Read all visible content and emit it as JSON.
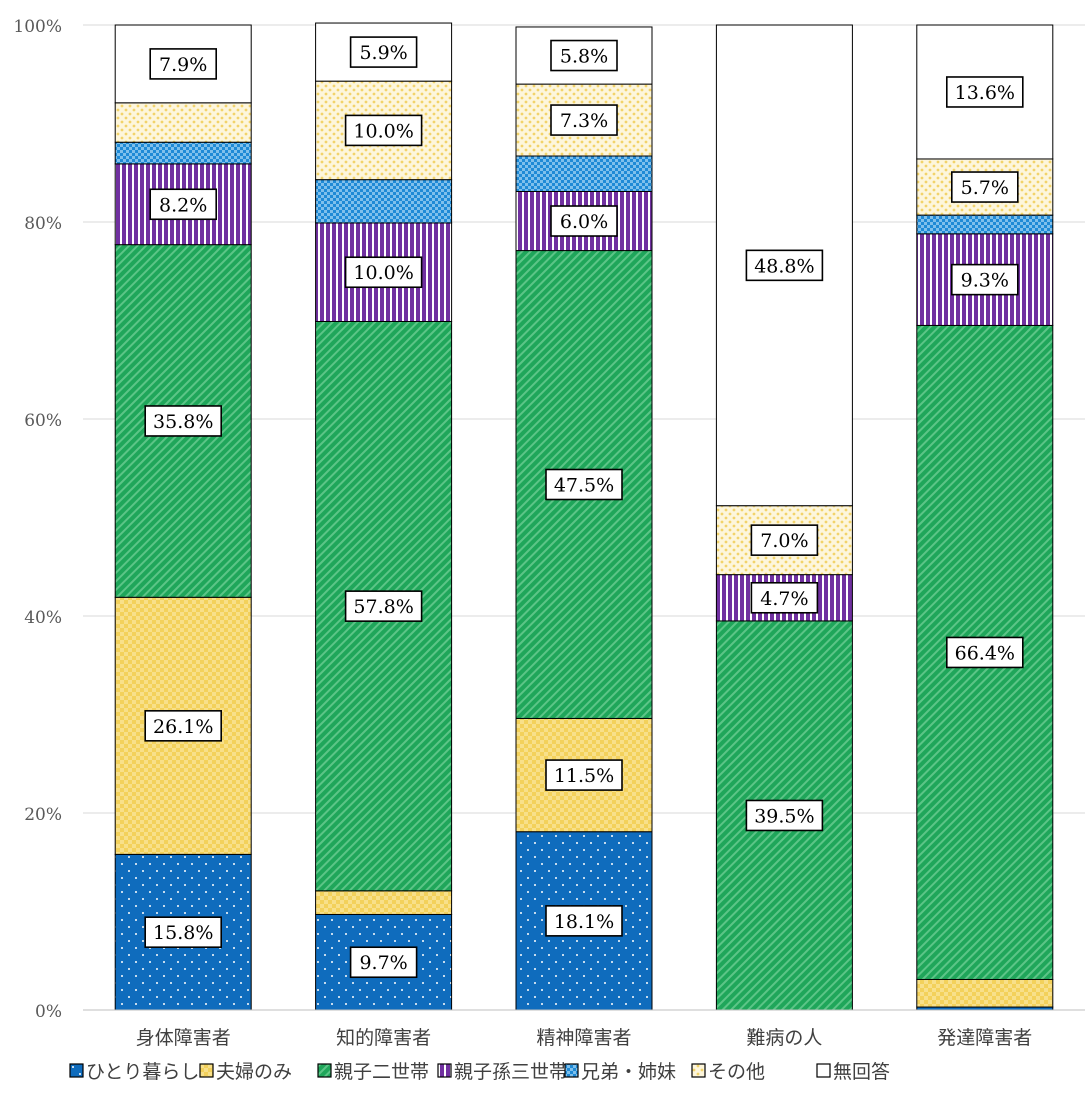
{
  "chart_data": {
    "type": "bar",
    "stacked": true,
    "percent_stacked": true,
    "categories": [
      "身体障害者",
      "知的障害者",
      "精神障害者",
      "難病の人",
      "発達障害者"
    ],
    "series": [
      {
        "name": "ひとり暮らし",
        "values": [
          15.8,
          9.7,
          18.1,
          0.0,
          0.3
        ],
        "labels": [
          "15.8%",
          "9.7%",
          "18.1%",
          "",
          ""
        ],
        "color": "#0f6cbd",
        "pattern": "dots-white"
      },
      {
        "name": "夫婦のみ",
        "values": [
          26.1,
          2.4,
          11.5,
          0.0,
          2.8
        ],
        "labels": [
          "26.1%",
          "",
          "11.5%",
          "",
          ""
        ],
        "color": "#f3d15b",
        "pattern": "checker"
      },
      {
        "name": "親子二世帯",
        "values": [
          35.8,
          57.8,
          47.5,
          39.5,
          66.4
        ],
        "labels": [
          "35.8%",
          "57.8%",
          "47.5%",
          "39.5%",
          "66.4%"
        ],
        "color": "#1fa65a",
        "pattern": "diagonal"
      },
      {
        "name": "親子孫三世帯",
        "values": [
          8.2,
          10.0,
          6.0,
          4.7,
          9.3
        ],
        "labels": [
          "8.2%",
          "10.0%",
          "6.0%",
          "4.7%",
          "9.3%"
        ],
        "color": "#7030a0",
        "pattern": "vertical"
      },
      {
        "name": "兄弟・姉妹",
        "values": [
          2.2,
          4.4,
          3.6,
          0.0,
          1.9
        ],
        "labels": [
          "",
          "",
          "",
          "",
          ""
        ],
        "color": "#1f8ad6",
        "pattern": "grid"
      },
      {
        "name": "その他",
        "values": [
          4.0,
          10.0,
          7.3,
          7.0,
          5.7
        ],
        "labels": [
          "",
          "10.0%",
          "7.3%",
          "7.0%",
          "5.7%"
        ],
        "color": "#f7e7a6",
        "pattern": "dots-yellow"
      },
      {
        "name": "無回答",
        "values": [
          7.9,
          5.9,
          5.8,
          48.8,
          13.6
        ],
        "labels": [
          "7.9%",
          "5.9%",
          "5.8%",
          "48.8%",
          "13.6%"
        ],
        "color": "#ffffff",
        "pattern": "none"
      }
    ],
    "ylim": [
      0,
      100
    ],
    "yticks": [
      "0%",
      "20%",
      "40%",
      "60%",
      "80%",
      "100%"
    ],
    "ytick_values": [
      0,
      20,
      40,
      60,
      80,
      100
    ],
    "grid": true,
    "legend_position": "bottom",
    "title": "",
    "xlabel": "",
    "ylabel": ""
  }
}
